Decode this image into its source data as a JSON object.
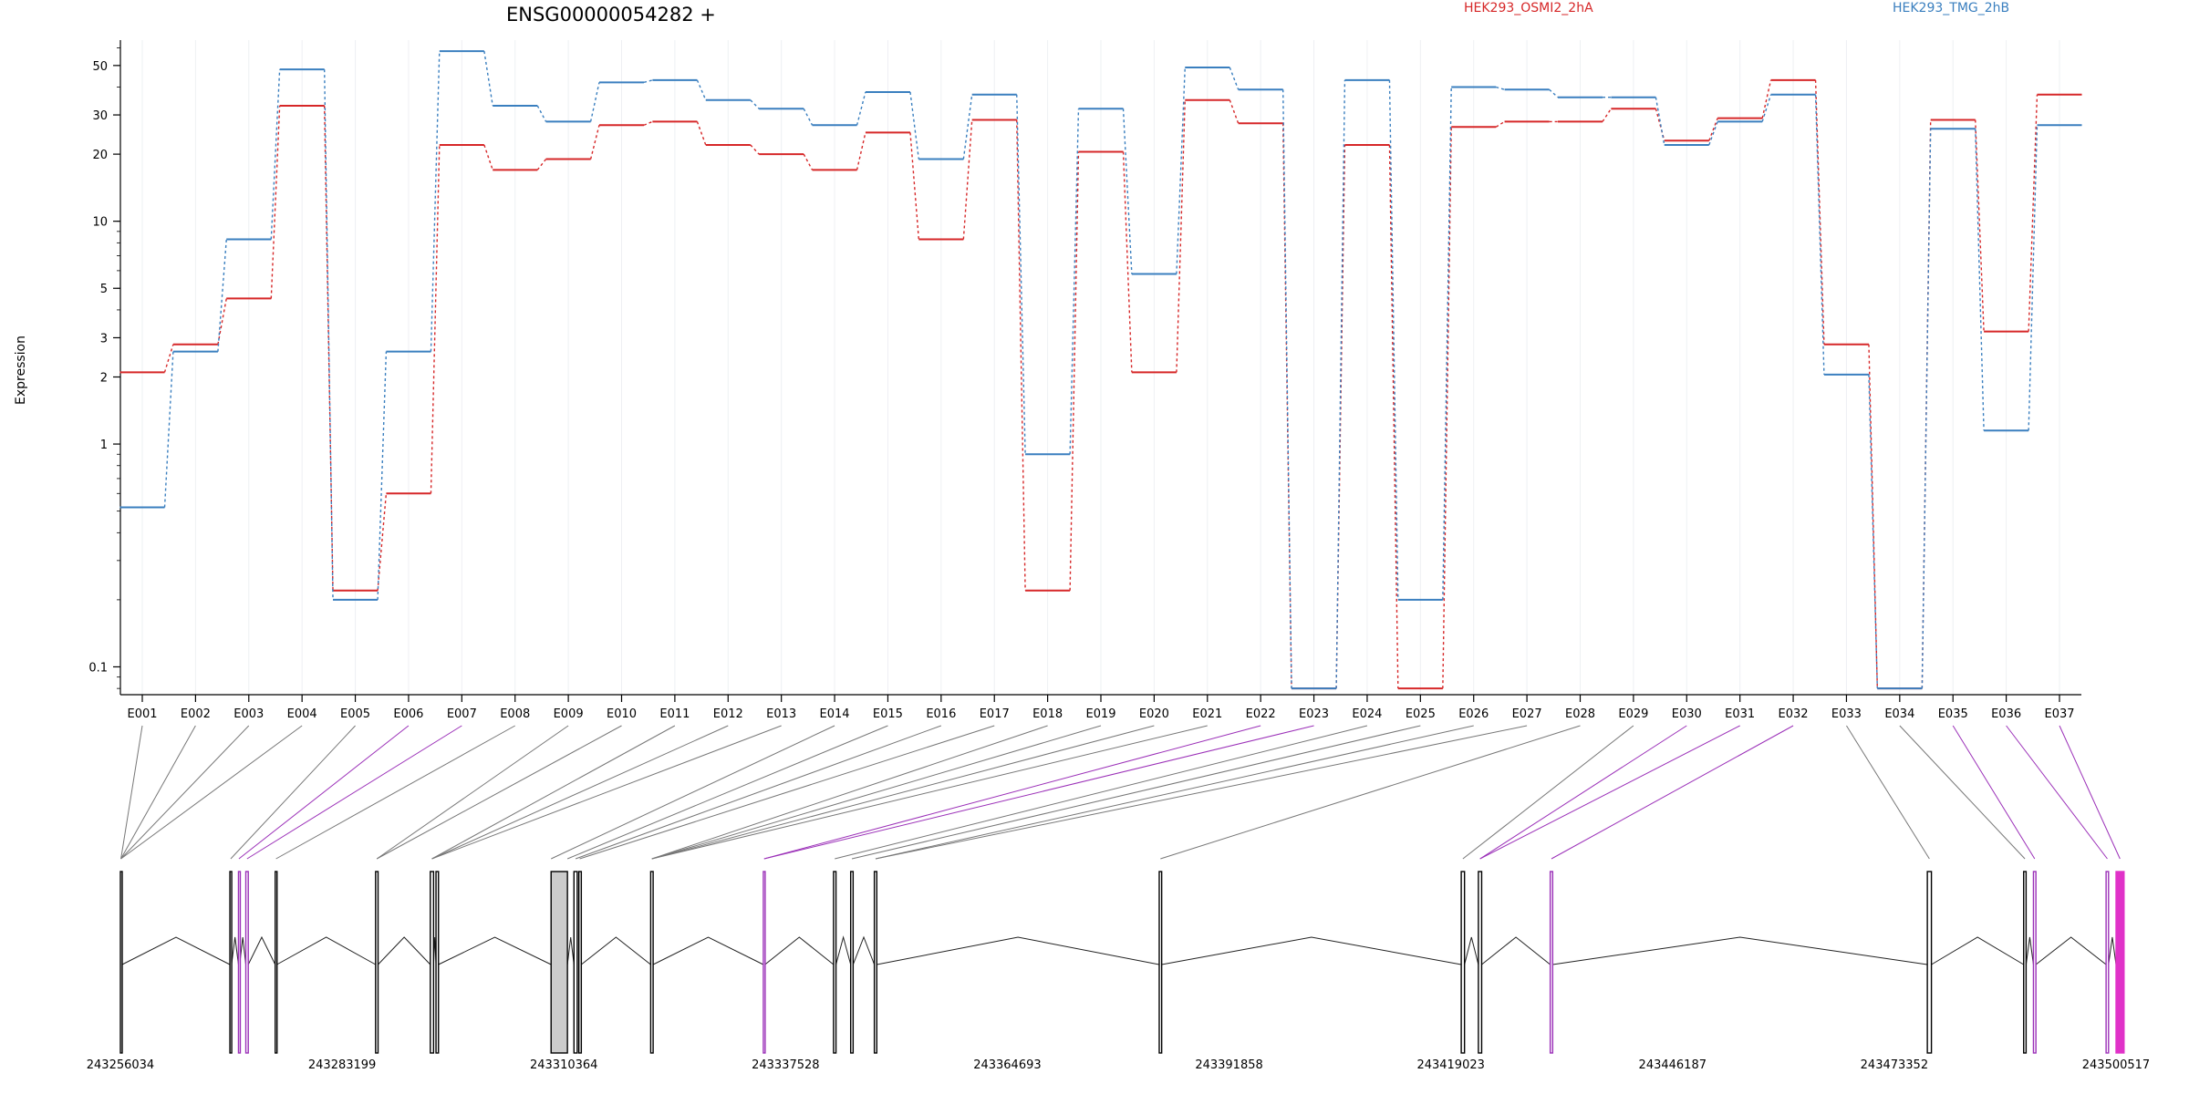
{
  "chart_data": {
    "type": "line",
    "title": "ENSG00000054282 +",
    "ylabel": "Expression",
    "xlabel": "",
    "y_scale": "log",
    "ylim": [
      0.075,
      65
    ],
    "y_ticks": [
      0.1,
      1,
      2,
      3,
      5,
      10,
      20,
      30,
      50
    ],
    "y_tick_labels": [
      "0.1",
      "1",
      "2",
      "3",
      "5",
      "10",
      "20",
      "30",
      "50"
    ],
    "grid": true,
    "legend_placement": "top-right",
    "categories": [
      "E001",
      "E002",
      "E003",
      "E004",
      "E005",
      "E006",
      "E007",
      "E008",
      "E009",
      "E010",
      "E011",
      "E012",
      "E013",
      "E014",
      "E015",
      "E016",
      "E017",
      "E018",
      "E019",
      "E020",
      "E021",
      "E022",
      "E023",
      "E024",
      "E025",
      "E026",
      "E027",
      "E028",
      "E029",
      "E030",
      "E031",
      "E032",
      "E033",
      "E034",
      "E035",
      "E036",
      "E037"
    ],
    "series": [
      {
        "name": "HEK293_OSMI2_2hA",
        "color": "#d62728",
        "values": [
          2.1,
          2.8,
          4.5,
          33,
          0.22,
          0.6,
          22,
          17,
          19,
          27,
          28,
          22,
          20,
          17,
          25,
          8.3,
          28.5,
          0.22,
          20.5,
          2.1,
          35,
          27.5,
          0.08,
          22,
          0.08,
          26.5,
          28,
          28,
          32,
          23,
          29,
          43,
          2.8,
          0.08,
          28.5,
          3.2,
          37
        ]
      },
      {
        "name": "HEK293_TMG_2hB",
        "color": "#3a7fbf",
        "values": [
          0.52,
          2.6,
          8.3,
          48,
          0.2,
          2.6,
          58,
          33,
          28,
          42,
          43,
          35,
          32,
          27,
          38,
          19,
          37,
          0.9,
          32,
          5.8,
          49,
          39,
          0.08,
          43,
          0.2,
          40,
          39,
          36,
          36,
          22,
          28,
          37,
          2.05,
          0.08,
          26,
          1.15,
          27
        ]
      }
    ],
    "genomic_axis": {
      "tick_labels": [
        "243256034",
        "243283199",
        "243310364",
        "243337528",
        "243364693",
        "243391858",
        "243419023",
        "243446187",
        "243473352",
        "243500517"
      ],
      "min": 243256034,
      "max": 243500517
    },
    "exons": [
      {
        "start": 243256034,
        "end": 243256250,
        "color": "black",
        "fill": "none"
      },
      {
        "start": 243269450,
        "end": 243269650,
        "color": "black",
        "fill": "none"
      },
      {
        "start": 243270500,
        "end": 243270650,
        "color": "purple",
        "fill": "none"
      },
      {
        "start": 243271400,
        "end": 243271700,
        "color": "purple",
        "fill": "none"
      },
      {
        "start": 243275000,
        "end": 243275200,
        "color": "black",
        "fill": "none"
      },
      {
        "start": 243287300,
        "end": 243287600,
        "color": "black",
        "fill": "none"
      },
      {
        "start": 243294000,
        "end": 243294400,
        "color": "black",
        "fill": "none"
      },
      {
        "start": 243294700,
        "end": 243295000,
        "color": "black",
        "fill": "none"
      },
      {
        "start": 243308800,
        "end": 243310800,
        "color": "black",
        "fill": "#cccccc"
      },
      {
        "start": 243311600,
        "end": 243312000,
        "color": "black",
        "fill": "none"
      },
      {
        "start": 243312200,
        "end": 243312500,
        "color": "black",
        "fill": "none"
      },
      {
        "start": 243321000,
        "end": 243321300,
        "color": "black",
        "fill": "none"
      },
      {
        "start": 243334800,
        "end": 243335000,
        "color": "purple",
        "fill": "none"
      },
      {
        "start": 243343400,
        "end": 243343700,
        "color": "black",
        "fill": "none"
      },
      {
        "start": 243345500,
        "end": 243345800,
        "color": "black",
        "fill": "none"
      },
      {
        "start": 243348400,
        "end": 243348700,
        "color": "black",
        "fill": "none"
      },
      {
        "start": 243383300,
        "end": 243383600,
        "color": "black",
        "fill": "none"
      },
      {
        "start": 243420300,
        "end": 243420700,
        "color": "black",
        "fill": "none"
      },
      {
        "start": 243422400,
        "end": 243422800,
        "color": "black",
        "fill": "none"
      },
      {
        "start": 243431200,
        "end": 243431500,
        "color": "purple",
        "fill": "none"
      },
      {
        "start": 243477400,
        "end": 243477900,
        "color": "black",
        "fill": "none"
      },
      {
        "start": 243489200,
        "end": 243489500,
        "color": "black",
        "fill": "none"
      },
      {
        "start": 243490400,
        "end": 243490700,
        "color": "purple",
        "fill": "none"
      },
      {
        "start": 243499300,
        "end": 243499600,
        "color": "purple",
        "fill": "none"
      },
      {
        "start": 243500517,
        "end": 243501500,
        "color": "#e032c8",
        "fill": "#e032c8"
      }
    ],
    "exon_links": [
      {
        "exon": "E001",
        "to": 243256100,
        "color": "gray"
      },
      {
        "exon": "E002",
        "to": 243256100,
        "color": "gray"
      },
      {
        "exon": "E003",
        "to": 243256100,
        "color": "gray"
      },
      {
        "exon": "E004",
        "to": 243256100,
        "color": "gray"
      },
      {
        "exon": "E005",
        "to": 243269550,
        "color": "gray"
      },
      {
        "exon": "E006",
        "to": 243270550,
        "color": "purple"
      },
      {
        "exon": "E007",
        "to": 243271550,
        "color": "purple"
      },
      {
        "exon": "E008",
        "to": 243275100,
        "color": "gray"
      },
      {
        "exon": "E009",
        "to": 243287450,
        "color": "gray"
      },
      {
        "exon": "E010",
        "to": 243287450,
        "color": "gray"
      },
      {
        "exon": "E011",
        "to": 243294200,
        "color": "gray"
      },
      {
        "exon": "E012",
        "to": 243294200,
        "color": "gray"
      },
      {
        "exon": "E013",
        "to": 243294200,
        "color": "gray"
      },
      {
        "exon": "E014",
        "to": 243308800,
        "color": "gray"
      },
      {
        "exon": "E015",
        "to": 243310800,
        "color": "gray"
      },
      {
        "exon": "E016",
        "to": 243311800,
        "color": "gray"
      },
      {
        "exon": "E017",
        "to": 243312300,
        "color": "gray"
      },
      {
        "exon": "E018",
        "to": 243321150,
        "color": "gray"
      },
      {
        "exon": "E019",
        "to": 243321150,
        "color": "gray"
      },
      {
        "exon": "E020",
        "to": 243321150,
        "color": "gray"
      },
      {
        "exon": "E021",
        "to": 243321150,
        "color": "gray"
      },
      {
        "exon": "E022",
        "to": 243334900,
        "color": "purple"
      },
      {
        "exon": "E023",
        "to": 243334900,
        "color": "purple"
      },
      {
        "exon": "E024",
        "to": 243343550,
        "color": "gray"
      },
      {
        "exon": "E025",
        "to": 243345650,
        "color": "gray"
      },
      {
        "exon": "E026",
        "to": 243348550,
        "color": "gray"
      },
      {
        "exon": "E027",
        "to": 243348550,
        "color": "gray"
      },
      {
        "exon": "E028",
        "to": 243383450,
        "color": "gray"
      },
      {
        "exon": "E029",
        "to": 243420500,
        "color": "gray"
      },
      {
        "exon": "E030",
        "to": 243422600,
        "color": "purple"
      },
      {
        "exon": "E031",
        "to": 243422600,
        "color": "purple"
      },
      {
        "exon": "E032",
        "to": 243431350,
        "color": "purple"
      },
      {
        "exon": "E033",
        "to": 243477650,
        "color": "gray"
      },
      {
        "exon": "E034",
        "to": 243489350,
        "color": "gray"
      },
      {
        "exon": "E035",
        "to": 243490550,
        "color": "purple"
      },
      {
        "exon": "E036",
        "to": 243499450,
        "color": "purple"
      },
      {
        "exon": "E037",
        "to": 243501000,
        "color": "purple"
      }
    ]
  }
}
